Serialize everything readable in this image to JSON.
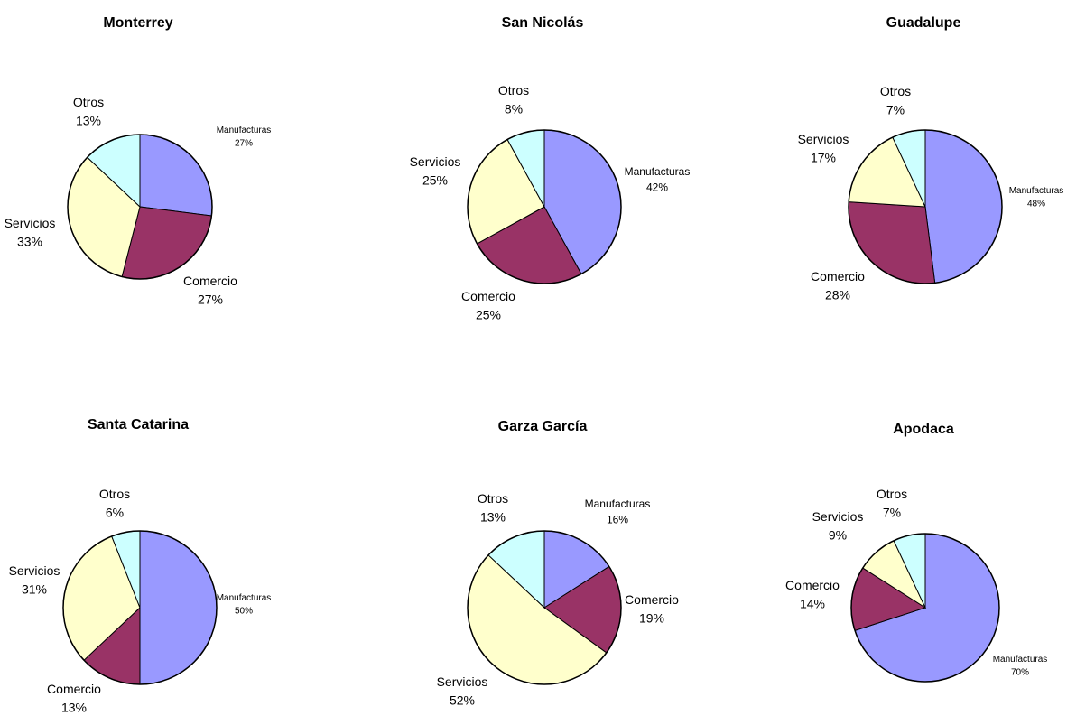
{
  "colors": {
    "Manufacturas": "#9999ff",
    "Comercio": "#993366",
    "Servicios": "#ffffcc",
    "Otros": "#ccffff"
  },
  "chart_data": [
    {
      "type": "pie",
      "title": "Monterrey",
      "slices": [
        {
          "category": "Manufacturas",
          "value": 27,
          "label": "27%"
        },
        {
          "category": "Comercio",
          "value": 27,
          "label": "27%"
        },
        {
          "category": "Servicios",
          "value": 33,
          "label": "33%"
        },
        {
          "category": "Otros",
          "value": 13,
          "label": "13%"
        }
      ]
    },
    {
      "type": "pie",
      "title": "San Nicolás",
      "slices": [
        {
          "category": "Manufacturas",
          "value": 42,
          "label": "42%"
        },
        {
          "category": "Comercio",
          "value": 25,
          "label": "25%"
        },
        {
          "category": "Servicios",
          "value": 25,
          "label": "25%"
        },
        {
          "category": "Otros",
          "value": 8,
          "label": "8%"
        }
      ]
    },
    {
      "type": "pie",
      "title": "Guadalupe",
      "slices": [
        {
          "category": "Manufacturas",
          "value": 48,
          "label": "48%"
        },
        {
          "category": "Comercio",
          "value": 28,
          "label": "28%"
        },
        {
          "category": "Servicios",
          "value": 17,
          "label": "17%"
        },
        {
          "category": "Otros",
          "value": 7,
          "label": "7%"
        }
      ]
    },
    {
      "type": "pie",
      "title": "Santa Catarina",
      "slices": [
        {
          "category": "Manufacturas",
          "value": 50,
          "label": "50%"
        },
        {
          "category": "Comercio",
          "value": 13,
          "label": "13%"
        },
        {
          "category": "Servicios",
          "value": 31,
          "label": "31%"
        },
        {
          "category": "Otros",
          "value": 6,
          "label": "6%"
        }
      ]
    },
    {
      "type": "pie",
      "title": "Garza García",
      "slices": [
        {
          "category": "Manufacturas",
          "value": 16,
          "label": "16%"
        },
        {
          "category": "Comercio",
          "value": 19,
          "label": "19%"
        },
        {
          "category": "Servicios",
          "value": 52,
          "label": "52%"
        },
        {
          "category": "Otros",
          "value": 13,
          "label": "13%"
        }
      ]
    },
    {
      "type": "pie",
      "title": "Apodaca",
      "slices": [
        {
          "category": "Manufacturas",
          "value": 70,
          "label": "70%"
        },
        {
          "category": "Comercio",
          "value": 14,
          "label": "14%"
        },
        {
          "category": "Servicios",
          "value": 9,
          "label": "9%"
        },
        {
          "category": "Otros",
          "value": 7,
          "label": "7%"
        }
      ]
    }
  ]
}
